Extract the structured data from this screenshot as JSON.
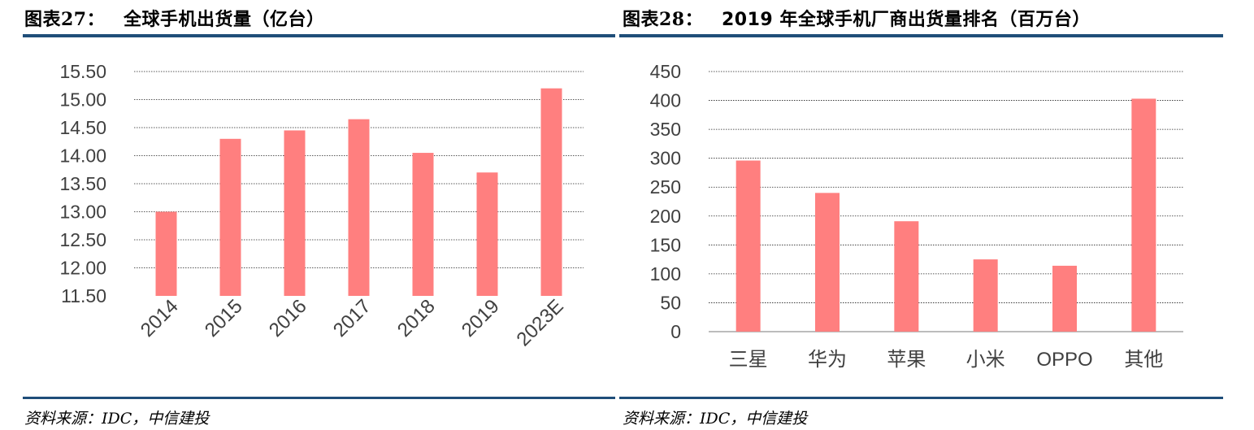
{
  "source_text": "资料来源：IDC，中信建投",
  "chart_data": [
    {
      "type": "bar",
      "figure_label": "图表27：",
      "title": "全球手机出货量（亿台）",
      "categories": [
        "2014",
        "2015",
        "2016",
        "2017",
        "2018",
        "2019",
        "2023E"
      ],
      "values": [
        13.0,
        14.3,
        14.45,
        14.65,
        14.05,
        13.7,
        15.2
      ],
      "ylim": [
        11.5,
        15.5
      ],
      "yticks": [
        "11.50",
        "12.00",
        "12.50",
        "13.00",
        "13.50",
        "14.00",
        "14.50",
        "15.00",
        "15.50"
      ],
      "xlabel": "",
      "ylabel": "",
      "grid": true,
      "bar_color": "#ff7f7f"
    },
    {
      "type": "bar",
      "figure_label": "图表28：",
      "title": "2019 年全球手机厂商出货量排名（百万台）",
      "categories": [
        "三星",
        "华为",
        "苹果",
        "小米",
        "OPPO",
        "其他"
      ],
      "values": [
        296,
        240,
        191,
        125,
        114,
        403
      ],
      "ylim": [
        0,
        450
      ],
      "yticks": [
        "0",
        "50",
        "100",
        "150",
        "200",
        "250",
        "300",
        "350",
        "400",
        "450"
      ],
      "xlabel": "",
      "ylabel": "",
      "grid": true,
      "bar_color": "#ff7f7f"
    }
  ]
}
